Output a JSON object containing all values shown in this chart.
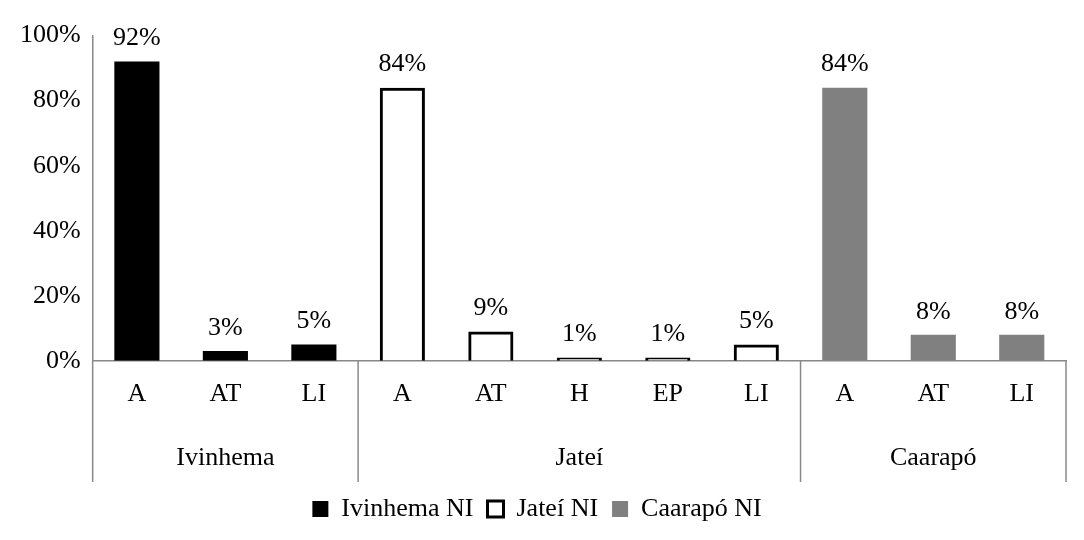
{
  "chart_data": {
    "type": "bar",
    "categories": [
      "A",
      "AT",
      "LI",
      "A",
      "AT",
      "H",
      "EP",
      "LI",
      "A",
      "AT",
      "LI"
    ],
    "series": [
      {
        "name": "Ivinhema NI",
        "color": "#000000",
        "values": [
          92,
          3,
          5,
          null,
          null,
          null,
          null,
          null,
          null,
          null,
          null
        ],
        "value_labels": [
          "92%",
          "3%",
          "5%",
          null,
          null,
          null,
          null,
          null,
          null,
          null,
          null
        ]
      },
      {
        "name": "Jateí NI",
        "color": "#000000",
        "values": [
          null,
          null,
          null,
          84,
          9,
          1,
          1,
          5,
          null,
          null,
          null
        ],
        "value_labels": [
          null,
          null,
          null,
          "84%",
          "9%",
          "1%",
          "1%",
          "5%",
          null,
          null,
          null
        ]
      },
      {
        "name": "Caarapó NI",
        "color": "#808080",
        "values": [
          null,
          null,
          null,
          null,
          null,
          null,
          null,
          null,
          84,
          8,
          8
        ],
        "value_labels": [
          null,
          null,
          null,
          null,
          null,
          null,
          null,
          null,
          "84%",
          "8%",
          "8%"
        ]
      }
    ],
    "annotations": [
      "Ivinhema",
      "Jateí",
      "Caarapó"
    ],
    "ylim": [
      0,
      100
    ],
    "yticks": [
      {
        "value": 0,
        "label": "0%"
      },
      {
        "value": 20,
        "label": "20%"
      },
      {
        "value": 40,
        "label": "40%"
      },
      {
        "value": 60,
        "label": "60%"
      },
      {
        "value": 80,
        "label": "80%"
      },
      {
        "value": 100,
        "label": "100%"
      }
    ],
    "grid": false,
    "legend": "bottom"
  }
}
